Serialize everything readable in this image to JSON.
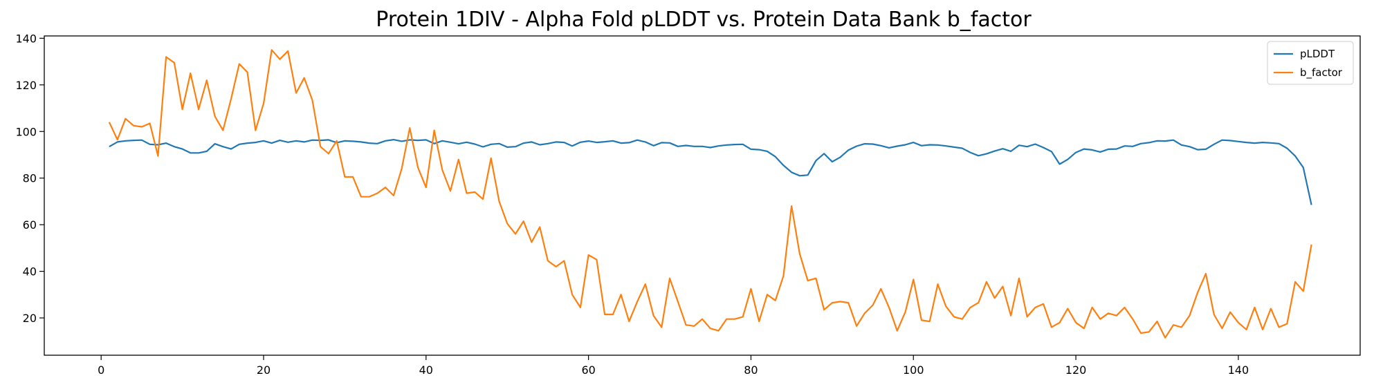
{
  "chart_data": {
    "type": "line",
    "title": "Protein 1DIV - Alpha Fold pLDDT vs. Protein Data Bank b_factor",
    "xlabel": "",
    "ylabel": "",
    "xlim": [
      -7,
      155
    ],
    "ylim": [
      4,
      141
    ],
    "xticks": [
      0,
      20,
      40,
      60,
      80,
      100,
      120,
      140
    ],
    "yticks": [
      20,
      40,
      60,
      80,
      100,
      120,
      140
    ],
    "grid": false,
    "legend_position": "top-right",
    "x": [
      1,
      2,
      3,
      4,
      5,
      6,
      7,
      8,
      9,
      10,
      11,
      12,
      13,
      14,
      15,
      16,
      17,
      18,
      19,
      20,
      21,
      22,
      23,
      24,
      25,
      26,
      27,
      28,
      29,
      30,
      31,
      32,
      33,
      34,
      35,
      36,
      37,
      38,
      39,
      40,
      41,
      42,
      43,
      44,
      45,
      46,
      47,
      48,
      49,
      50,
      51,
      52,
      53,
      54,
      55,
      56,
      57,
      58,
      59,
      60,
      61,
      62,
      63,
      64,
      65,
      66,
      67,
      68,
      69,
      70,
      71,
      72,
      73,
      74,
      75,
      76,
      77,
      78,
      79,
      80,
      81,
      82,
      83,
      84,
      85,
      86,
      87,
      88,
      89,
      90,
      91,
      92,
      93,
      94,
      95,
      96,
      97,
      98,
      99,
      100,
      101,
      102,
      103,
      104,
      105,
      106,
      107,
      108,
      109,
      110,
      111,
      112,
      113,
      114,
      115,
      116,
      117,
      118,
      119,
      120,
      121,
      122,
      123,
      124,
      125,
      126,
      127,
      128,
      129,
      130,
      131,
      132,
      133,
      134,
      135,
      136,
      137,
      138,
      139,
      140,
      141,
      142,
      143,
      144,
      145,
      146,
      147,
      148,
      149
    ],
    "series": [
      {
        "name": "pLDDT",
        "color": "#1f77b4",
        "values": [
          93.5,
          95.5,
          96,
          96.2,
          96.3,
          94.5,
          94.3,
          95,
          93.5,
          92.5,
          90.8,
          90.8,
          91.5,
          94.7,
          93.5,
          92.5,
          94.5,
          95,
          95.3,
          96,
          95,
          96.2,
          95.4,
          96,
          95.5,
          96.3,
          96.2,
          96.4,
          95.2,
          96,
          95.8,
          95.5,
          95,
          94.8,
          96,
          96.5,
          95.8,
          96.4,
          96.2,
          96.4,
          94.8,
          96,
          95.4,
          94.7,
          95.4,
          94.6,
          93.4,
          94.5,
          94.8,
          93.3,
          93.5,
          95,
          95.5,
          94.3,
          94.8,
          95.5,
          95.3,
          93.8,
          95.4,
          95.9,
          95.3,
          95.6,
          96,
          95,
          95.2,
          96.3,
          95.5,
          93.9,
          95.2,
          95.1,
          93.6,
          94,
          93.6,
          93.6,
          93.1,
          93.8,
          94.2,
          94.4,
          94.5,
          92.4,
          92.2,
          91.5,
          89.2,
          85.5,
          82.5,
          81,
          81.3,
          87.5,
          90.5,
          87,
          89,
          92,
          93.7,
          94.7,
          94.6,
          93.9,
          93,
          93.7,
          94.3,
          95.3,
          93.9,
          94.3,
          94.2,
          93.8,
          93.3,
          92.8,
          91,
          89.6,
          90.4,
          91.6,
          92.6,
          91.5,
          94.1,
          93.5,
          94.6,
          93.1,
          91.4,
          86,
          88,
          91,
          92.5,
          92.1,
          91.2,
          92.4,
          92.5,
          93.8,
          93.6,
          94.8,
          95.2,
          96,
          95.9,
          96.3,
          94.2,
          93.5,
          92.2,
          92.4,
          94.5,
          96.3,
          96.1,
          95.7,
          95.3,
          95,
          95.3,
          95.1,
          94.8,
          92.8,
          89.5,
          84.5,
          68.5
        ]
      },
      {
        "name": "b_factor",
        "color": "#ff7f0e",
        "values": [
          104,
          96.5,
          105.5,
          102.5,
          102,
          103.5,
          89.5,
          132,
          129.5,
          109.5,
          125,
          109.5,
          122,
          106.5,
          100.5,
          114,
          129,
          125.5,
          100.5,
          112,
          135,
          131,
          134.5,
          116.5,
          123,
          113.5,
          93.5,
          90.5,
          96,
          80.5,
          80.5,
          72,
          72,
          73.5,
          76,
          72.5,
          84,
          101.5,
          84.5,
          76,
          100.5,
          83.5,
          74.5,
          88,
          73.5,
          74,
          71,
          88.5,
          70,
          60.5,
          56,
          61.5,
          52.5,
          59,
          44.5,
          42,
          44.5,
          30,
          24.5,
          47,
          45,
          21.5,
          21.5,
          30,
          18.5,
          27,
          34.5,
          21,
          16,
          37,
          27,
          17,
          16.5,
          19.5,
          15.5,
          14.5,
          19.5,
          19.5,
          20.5,
          32.5,
          18.5,
          30,
          27.5,
          38,
          68,
          47.5,
          36,
          37,
          23.5,
          26.5,
          27,
          26.5,
          16.5,
          22,
          25.5,
          32.5,
          24.5,
          14.5,
          22.5,
          36.5,
          19,
          18.5,
          34.5,
          25,
          20.5,
          19.5,
          24.5,
          26.5,
          35.5,
          28.5,
          33.5,
          21,
          37,
          20.5,
          24.5,
          26,
          16,
          18,
          24,
          18,
          15.5,
          24.5,
          19.5,
          22,
          21,
          24.5,
          19.5,
          13.5,
          14,
          18.5,
          11.5,
          17,
          16,
          21,
          31,
          39,
          21.5,
          15.5,
          22.5,
          18,
          15,
          24.5,
          15,
          24,
          16,
          17.5,
          35.5,
          31.5,
          51.5
        ]
      }
    ]
  }
}
